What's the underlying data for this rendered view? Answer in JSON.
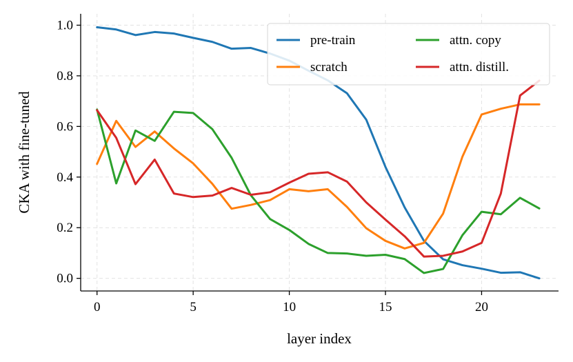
{
  "chart_data": {
    "type": "line",
    "xlabel": "layer index",
    "ylabel": "CKA with fine-tuned",
    "xlim": [
      -0.85,
      24.0
    ],
    "ylim": [
      -0.05,
      1.045
    ],
    "xticks": [
      0,
      5,
      10,
      15,
      20
    ],
    "yticks": [
      0.0,
      0.2,
      0.4,
      0.6,
      0.8,
      1.0
    ],
    "xtick_labels": [
      "0",
      "5",
      "10",
      "15",
      "20"
    ],
    "ytick_labels": [
      "0.0",
      "0.2",
      "0.4",
      "0.6",
      "0.8",
      "1.0"
    ],
    "grid": true,
    "legend_position": "top-right",
    "x": [
      0,
      1,
      2,
      3,
      4,
      5,
      6,
      7,
      8,
      9,
      10,
      11,
      12,
      13,
      14,
      15,
      16,
      17,
      18,
      19,
      20,
      21,
      22,
      23
    ],
    "series": [
      {
        "name": "pre-train",
        "color": "#1f77b4",
        "values": [
          0.992,
          0.983,
          0.961,
          0.973,
          0.967,
          0.95,
          0.934,
          0.907,
          0.91,
          0.888,
          0.86,
          0.82,
          0.782,
          0.731,
          0.627,
          0.44,
          0.28,
          0.148,
          0.075,
          0.052,
          0.038,
          0.022,
          0.024,
          0.0
        ]
      },
      {
        "name": "scratch",
        "color": "#ff7f0e",
        "values": [
          0.452,
          0.622,
          0.519,
          0.58,
          0.513,
          0.454,
          0.373,
          0.275,
          0.29,
          0.309,
          0.352,
          0.344,
          0.352,
          0.282,
          0.198,
          0.148,
          0.118,
          0.14,
          0.256,
          0.48,
          0.647,
          0.67,
          0.687,
          0.687
        ]
      },
      {
        "name": "attn. copy",
        "color": "#2ca02c",
        "values": [
          0.667,
          0.375,
          0.584,
          0.543,
          0.658,
          0.653,
          0.589,
          0.476,
          0.328,
          0.234,
          0.191,
          0.136,
          0.1,
          0.098,
          0.089,
          0.093,
          0.076,
          0.021,
          0.037,
          0.17,
          0.263,
          0.253,
          0.318,
          0.276
        ]
      },
      {
        "name": "attn. distill.",
        "color": "#d62728",
        "values": [
          0.664,
          0.555,
          0.372,
          0.469,
          0.335,
          0.321,
          0.327,
          0.357,
          0.33,
          0.34,
          0.378,
          0.413,
          0.419,
          0.382,
          0.3,
          0.232,
          0.166,
          0.086,
          0.089,
          0.106,
          0.14,
          0.335,
          0.722,
          0.781
        ]
      }
    ]
  }
}
